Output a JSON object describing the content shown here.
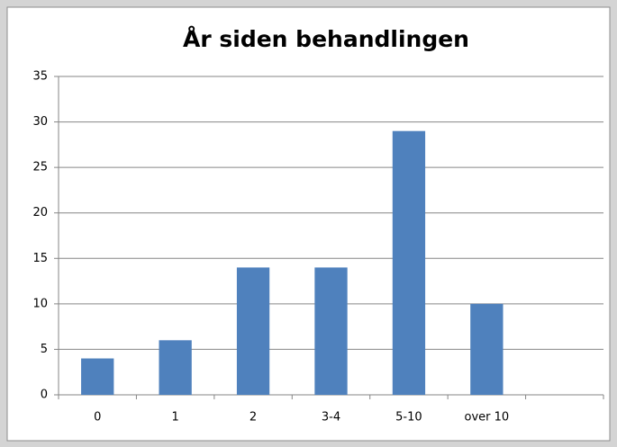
{
  "chart_data": {
    "type": "bar",
    "title": "År siden behandlingen",
    "categories": [
      "0",
      "1",
      "2",
      "3-4",
      "5-10",
      "over 10",
      null
    ],
    "values": [
      4,
      6,
      14,
      14,
      29,
      10,
      null
    ],
    "color": "#4f81bd",
    "ylim": [
      0,
      35
    ],
    "yticks": [
      0,
      5,
      10,
      15,
      20,
      25,
      30,
      35
    ],
    "grid": true
  }
}
